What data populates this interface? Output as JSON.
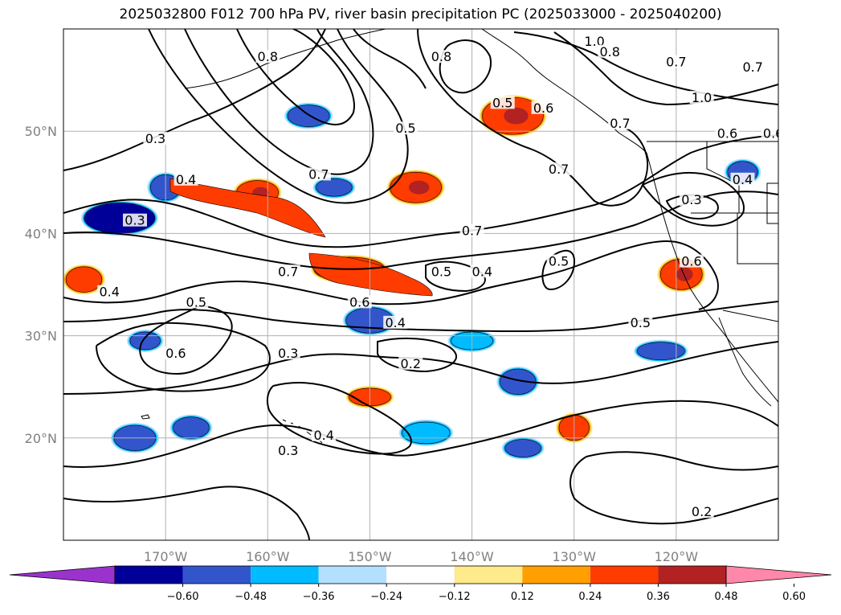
{
  "title": "2025032800 F012 700 hPa PV, river basin precipitation PC (2025033000 - 2025040200)",
  "map": {
    "lon_range": [
      -180,
      -110
    ],
    "lat_range": [
      10,
      60
    ],
    "lon_ticks": [
      {
        "value": -170,
        "label": "170°W"
      },
      {
        "value": -160,
        "label": "160°W"
      },
      {
        "value": -150,
        "label": "150°W"
      },
      {
        "value": -140,
        "label": "140°W"
      },
      {
        "value": -130,
        "label": "130°W"
      },
      {
        "value": -120,
        "label": "120°W"
      }
    ],
    "lat_ticks": [
      {
        "value": 20,
        "label": "20°N"
      },
      {
        "value": 30,
        "label": "30°N"
      },
      {
        "value": 40,
        "label": "40°N"
      },
      {
        "value": 50,
        "label": "50°N"
      }
    ],
    "grid": true,
    "pv_contour_labels": [
      {
        "lon": -171,
        "lat": 49,
        "text": "0.3"
      },
      {
        "lon": -168,
        "lat": 45,
        "text": "0.4"
      },
      {
        "lon": -160,
        "lat": 57,
        "text": "0.8"
      },
      {
        "lon": -143,
        "lat": 57,
        "text": "0.8"
      },
      {
        "lon": -128,
        "lat": 58.5,
        "text": "1.0"
      },
      {
        "lon": -126.5,
        "lat": 57.5,
        "text": "0.8"
      },
      {
        "lon": -120,
        "lat": 56.5,
        "text": "0.7"
      },
      {
        "lon": -112.5,
        "lat": 56,
        "text": "0.7"
      },
      {
        "lon": -117.5,
        "lat": 53,
        "text": "1.0"
      },
      {
        "lon": -137,
        "lat": 52.5,
        "text": "0.5"
      },
      {
        "lon": -133,
        "lat": 52,
        "text": "0.6"
      },
      {
        "lon": -125.5,
        "lat": 50.5,
        "text": "0.7"
      },
      {
        "lon": -115,
        "lat": 49.5,
        "text": "0.6"
      },
      {
        "lon": -110.5,
        "lat": 49.5,
        "text": "0.6"
      },
      {
        "lon": -146.5,
        "lat": 50,
        "text": "0.5"
      },
      {
        "lon": -155,
        "lat": 45.5,
        "text": "0.7"
      },
      {
        "lon": -131.5,
        "lat": 46,
        "text": "0.7"
      },
      {
        "lon": -113.5,
        "lat": 45,
        "text": "0.4"
      },
      {
        "lon": -118.5,
        "lat": 43,
        "text": "0.3"
      },
      {
        "lon": -173,
        "lat": 41,
        "text": "0.3"
      },
      {
        "lon": -140,
        "lat": 40,
        "text": "0.7"
      },
      {
        "lon": -158,
        "lat": 36,
        "text": "0.7"
      },
      {
        "lon": -151,
        "lat": 33,
        "text": "0.6"
      },
      {
        "lon": -143,
        "lat": 36,
        "text": "0.5"
      },
      {
        "lon": -139,
        "lat": 36,
        "text": "0.4"
      },
      {
        "lon": -131.5,
        "lat": 37,
        "text": "0.5"
      },
      {
        "lon": -118.5,
        "lat": 37,
        "text": "0.6"
      },
      {
        "lon": -175.5,
        "lat": 34,
        "text": "0.4"
      },
      {
        "lon": -167,
        "lat": 33,
        "text": "0.5"
      },
      {
        "lon": -147.5,
        "lat": 31,
        "text": "0.4"
      },
      {
        "lon": -123.5,
        "lat": 31,
        "text": "0.5"
      },
      {
        "lon": -169,
        "lat": 28,
        "text": "0.6"
      },
      {
        "lon": -158,
        "lat": 28,
        "text": "0.3"
      },
      {
        "lon": -146,
        "lat": 27,
        "text": "0.2"
      },
      {
        "lon": -154.5,
        "lat": 20,
        "text": "0.4"
      },
      {
        "lon": -158,
        "lat": 18.5,
        "text": "0.3"
      },
      {
        "lon": -117.5,
        "lat": 12.5,
        "text": "0.2"
      }
    ]
  },
  "colorbar": {
    "ticks": [
      "−0.60",
      "−0.48",
      "−0.36",
      "−0.24",
      "−0.12",
      "0.12",
      "0.24",
      "0.36",
      "0.48",
      "0.60"
    ],
    "colors": [
      "#9933cc",
      "#000099",
      "#3355cc",
      "#00bbff",
      "#b3e0ff",
      "#ffffff",
      "#ffea8c",
      "#ffa000",
      "#ff3c00",
      "#b22222",
      "#ff88aa"
    ]
  },
  "precip_pc_patches": [
    {
      "lon": -161,
      "lat": 44,
      "level": 0.48,
      "color": "#ff3c00"
    },
    {
      "lon": -145.5,
      "lat": 44.5,
      "level": 0.48,
      "color": "#ff3c00"
    },
    {
      "lon": -136,
      "lat": 51.5,
      "level": 0.48,
      "color": "#ff3c00"
    },
    {
      "lon": -152,
      "lat": 36.5,
      "level": 0.48,
      "color": "#ff3c00"
    },
    {
      "lon": -119.5,
      "lat": 36,
      "level": 0.48,
      "color": "#ff3c00"
    },
    {
      "lon": -178,
      "lat": 35.5,
      "level": 0.36,
      "color": "#ff3c00"
    },
    {
      "lon": -150,
      "lat": 24,
      "level": 0.36,
      "color": "#ff3c00"
    },
    {
      "lon": -174.5,
      "lat": 41.5,
      "level": -0.48,
      "color": "#000099"
    },
    {
      "lon": -170,
      "lat": 44.5,
      "level": -0.36,
      "color": "#3355cc"
    },
    {
      "lon": -153.5,
      "lat": 44.5,
      "level": -0.36,
      "color": "#3355cc"
    },
    {
      "lon": -156,
      "lat": 51.5,
      "level": -0.36,
      "color": "#3355cc"
    },
    {
      "lon": -150,
      "lat": 31.5,
      "level": -0.36,
      "color": "#3355cc"
    },
    {
      "lon": -172,
      "lat": 29.5,
      "level": -0.36,
      "color": "#3355cc"
    },
    {
      "lon": -167.5,
      "lat": 21,
      "level": -0.36,
      "color": "#3355cc"
    },
    {
      "lon": -173,
      "lat": 20,
      "level": -0.36,
      "color": "#3355cc"
    },
    {
      "lon": -121.5,
      "lat": 28.5,
      "level": -0.36,
      "color": "#3355cc"
    },
    {
      "lon": -113.5,
      "lat": 46,
      "level": -0.36,
      "color": "#3355cc"
    },
    {
      "lon": -135.5,
      "lat": 25.5,
      "level": -0.36,
      "color": "#3355cc"
    },
    {
      "lon": -140,
      "lat": 29.5,
      "level": -0.24,
      "color": "#00bbff"
    },
    {
      "lon": -144.5,
      "lat": 20.5,
      "level": -0.24,
      "color": "#00bbff"
    },
    {
      "lon": -130,
      "lat": 21,
      "level": 0.36,
      "color": "#ff3c00"
    },
    {
      "lon": -135,
      "lat": 19,
      "level": -0.36,
      "color": "#3355cc"
    }
  ]
}
